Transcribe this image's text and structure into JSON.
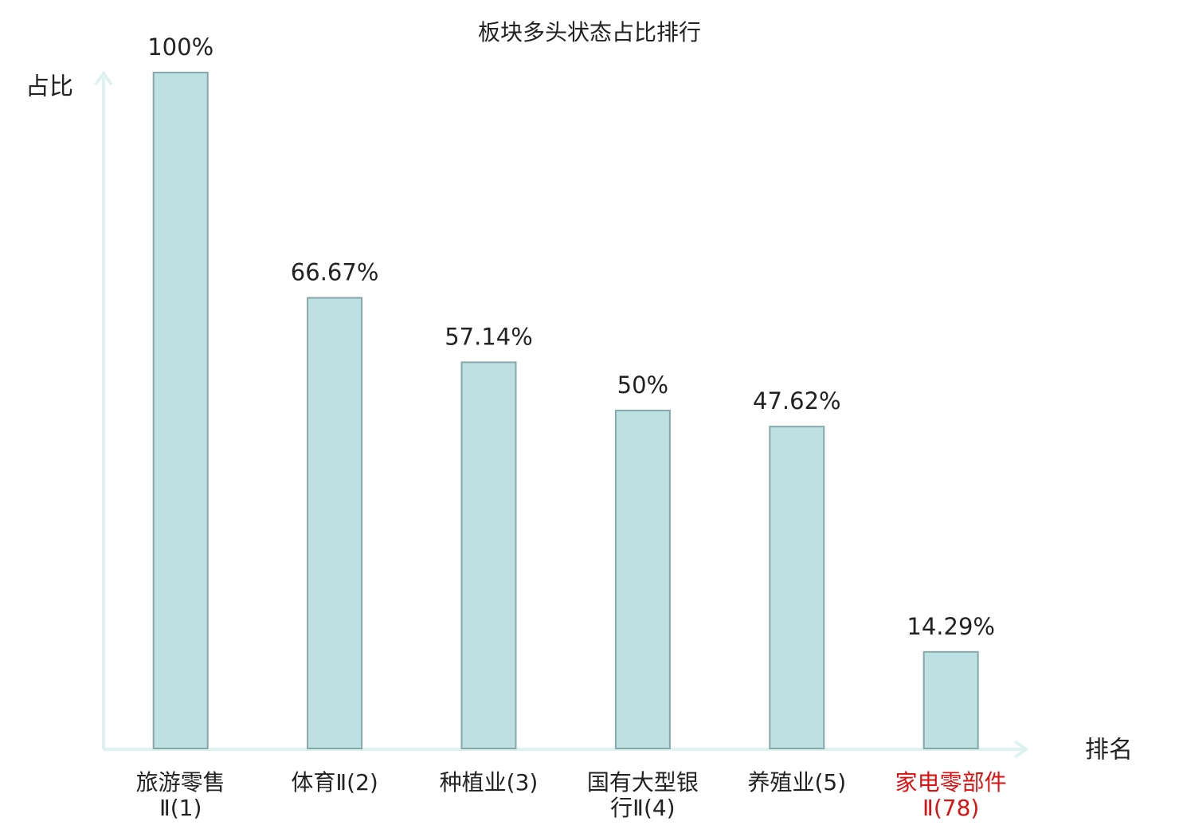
{
  "chart_data": {
    "type": "bar",
    "title": "板块多头状态占比排行",
    "y_label": "占比",
    "x_label": "排名",
    "categories": [
      "旅游零售Ⅱ(1)",
      "体育Ⅱ(2)",
      "种植业(3)",
      "国有大型银行Ⅱ(4)",
      "养殖业(5)",
      "家电零部件Ⅱ(78)"
    ],
    "category_colors": [
      "#222222",
      "#222222",
      "#222222",
      "#222222",
      "#222222",
      "#e01010"
    ],
    "values": [
      100,
      66.67,
      57.14,
      50,
      47.62,
      14.29
    ],
    "value_labels": [
      "100%",
      "66.67%",
      "57.14%",
      "50%",
      "47.62%",
      "14.29%"
    ],
    "color": "#bde0e3",
    "edge_color": "#86a8ab",
    "ylim": [
      0,
      100
    ]
  }
}
